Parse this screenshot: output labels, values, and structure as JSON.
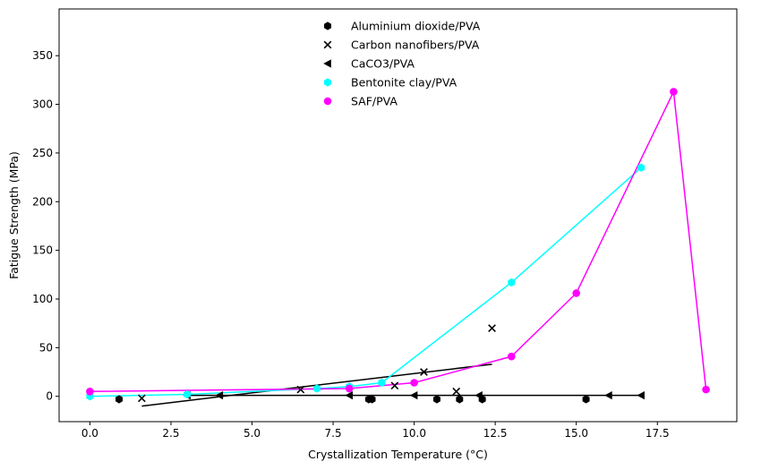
{
  "chart_data": {
    "type": "scatter",
    "title": "",
    "xlabel": "Crystallization Temperature (°C)",
    "ylabel": "Fatigue Strength (MPa)",
    "xlim": [
      -0.95,
      19.95
    ],
    "ylim": [
      -26,
      398
    ],
    "xticks": [
      0.0,
      2.5,
      5.0,
      7.5,
      10.0,
      12.5,
      15.0,
      17.5
    ],
    "xtick_labels": [
      "0.0",
      "2.5",
      "5.0",
      "7.5",
      "10.0",
      "12.5",
      "15.0",
      "17.5"
    ],
    "yticks": [
      0,
      50,
      100,
      150,
      200,
      250,
      300,
      350
    ],
    "ytick_labels": [
      "0",
      "50",
      "100",
      "150",
      "200",
      "250",
      "300",
      "350"
    ],
    "grid": false,
    "legend_position": "top-center",
    "series": [
      {
        "name": "Aluminium dioxide/PVA",
        "color": "#000000",
        "marker": "hexagon",
        "points": [
          [
            0.9,
            -3
          ],
          [
            8.6,
            -3
          ],
          [
            8.7,
            -3
          ],
          [
            10.7,
            -3
          ],
          [
            11.4,
            -3
          ],
          [
            12.1,
            -3
          ],
          [
            15.3,
            -3
          ]
        ],
        "line": null
      },
      {
        "name": "Carbon nanofibers/PVA",
        "color": "#000000",
        "marker": "x",
        "points": [
          [
            1.6,
            -2
          ],
          [
            6.5,
            7
          ],
          [
            9.4,
            11
          ],
          [
            10.3,
            25
          ],
          [
            11.3,
            5
          ],
          [
            12.4,
            70
          ]
        ],
        "line": [
          [
            1.6,
            -10
          ],
          [
            12.4,
            33
          ]
        ]
      },
      {
        "name": "CaCO3/PVA",
        "color": "#000000",
        "marker": "triangle-left",
        "points": [
          [
            3.0,
            1
          ],
          [
            4.0,
            1
          ],
          [
            8.0,
            1
          ],
          [
            10.0,
            1
          ],
          [
            12.0,
            1
          ],
          [
            16.0,
            1
          ],
          [
            17.0,
            1
          ]
        ],
        "line": [
          [
            3.0,
            1
          ],
          [
            17.0,
            1
          ]
        ]
      },
      {
        "name": "Bentonite clay/PVA",
        "color": "#00ffff",
        "marker": "hexagon",
        "points": [
          [
            0.0,
            0
          ],
          [
            3.0,
            2
          ],
          [
            7.0,
            8
          ],
          [
            8.0,
            10
          ],
          [
            9.0,
            14
          ],
          [
            13.0,
            117
          ],
          [
            17.0,
            235
          ]
        ],
        "line": [
          [
            0.0,
            0
          ],
          [
            3.0,
            2
          ],
          [
            7.0,
            8
          ],
          [
            8.0,
            10
          ],
          [
            9.0,
            14
          ],
          [
            13.0,
            117
          ],
          [
            17.0,
            235
          ]
        ]
      },
      {
        "name": "SAF/PVA",
        "color": "#ff00ff",
        "marker": "circle",
        "points": [
          [
            0.0,
            5
          ],
          [
            8.0,
            8
          ],
          [
            10.0,
            14
          ],
          [
            13.0,
            41
          ],
          [
            15.0,
            106
          ],
          [
            18.0,
            313
          ],
          [
            19.0,
            7
          ]
        ],
        "line": [
          [
            0.0,
            5
          ],
          [
            8.0,
            8
          ],
          [
            10.0,
            14
          ],
          [
            13.0,
            41
          ],
          [
            15.0,
            106
          ],
          [
            18.0,
            313
          ],
          [
            19.0,
            7
          ]
        ]
      }
    ]
  }
}
